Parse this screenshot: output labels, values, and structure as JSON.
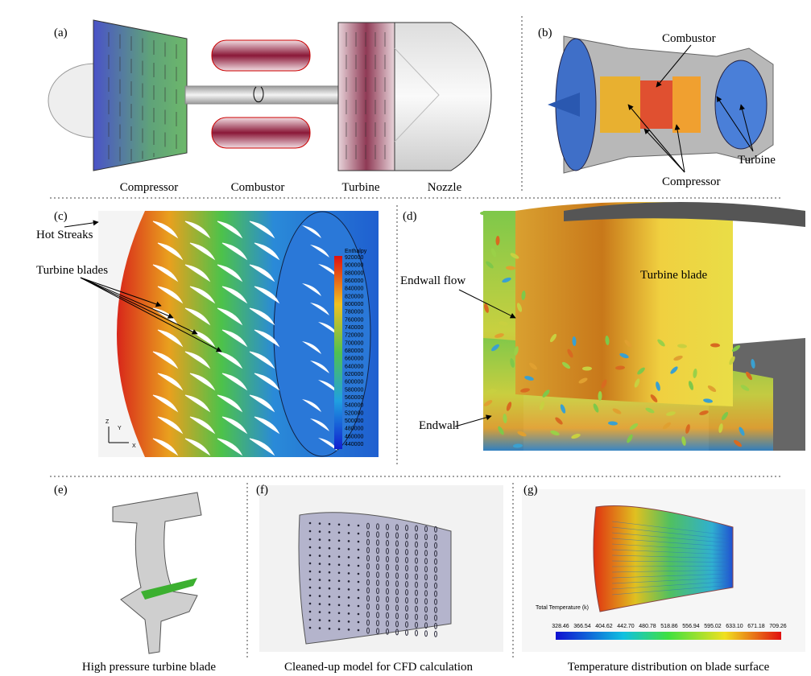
{
  "a": {
    "label": "(a)",
    "parts": [
      "Compressor",
      "Combustor",
      "Turbine",
      "Nozzle"
    ]
  },
  "b": {
    "label": "(b)",
    "callouts": [
      "Combustor",
      "Turbine",
      "Compressor"
    ]
  },
  "c": {
    "label": "(c)",
    "callouts": [
      "Hot Streaks",
      "Turbine blades"
    ],
    "legend_title": "Enthalpy",
    "legend_values": [
      "920000",
      "900000",
      "880000",
      "860000",
      "840000",
      "820000",
      "800000",
      "780000",
      "760000",
      "740000",
      "720000",
      "700000",
      "680000",
      "660000",
      "640000",
      "620000",
      "600000",
      "580000",
      "560000",
      "540000",
      "520000",
      "500000",
      "480000",
      "460000",
      "440000"
    ],
    "axes": [
      "Z",
      "Y",
      "X"
    ]
  },
  "d": {
    "label": "(d)",
    "callouts": [
      "Endwall flow",
      "Turbine blade",
      "Endwall"
    ]
  },
  "e": {
    "label": "(e)",
    "caption": "High pressure turbine blade"
  },
  "f": {
    "label": "(f)",
    "caption": "Cleaned-up model for CFD calculation"
  },
  "g": {
    "label": "(g)",
    "caption": "Temperature distribution on blade surface",
    "legend_title": "Total Temperature (k)",
    "legend_values": [
      "328.46",
      "366.54",
      "404.62",
      "442.70",
      "480.78",
      "518.86",
      "556.94",
      "595.02",
      "633.10",
      "671.18",
      "709.26"
    ]
  }
}
